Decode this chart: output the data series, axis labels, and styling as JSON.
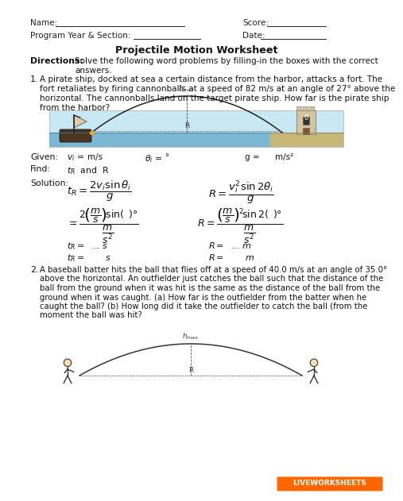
{
  "bg_color": "#ffffff",
  "text_color": "#222222",
  "title": "Projectile Motion Worksheet",
  "directions_label": "Directions:",
  "directions_line1": "Solve the following word problems by filling-in the boxes with the correct",
  "directions_line2": "answers.",
  "q1_label": "1.",
  "q1_lines": [
    "A pirate ship, docked at sea a certain distance from the harbor, attacks a fort. The",
    "fort retaliates by firing cannonballs at a speed of 82 m/s at an angle of 27° above the",
    "horizontal. The cannonballs land on the target pirate ship. How far is the pirate ship",
    "from the harbor?"
  ],
  "given_label": "Given:",
  "find_label": "Find:",
  "solution_label": "Solution:",
  "q2_label": "2.",
  "q2_lines": [
    "A baseball batter hits the ball that flies off at a speed of 40.0 m/s at an angle of 35.0°",
    "above the horizontal. An outfielder just catches the ball such that the distance of the",
    "ball from the ground when it was hit is the same as the distance of the ball from the",
    "ground when it was caught. (a) How far is the outfielder from the batter when he",
    "caught the ball? (b) How long did it take the outfielder to catch the ball (from the",
    "moment the ball was hit?"
  ],
  "sea_color": "#7ab8d4",
  "sky_color": "#c8e8f4",
  "ground_color": "#c8b878",
  "arc_color": "#333333",
  "live_text": "LIVEWORKSHEETS",
  "live_color": "#dd4400",
  "live_bg": "#ff6600"
}
